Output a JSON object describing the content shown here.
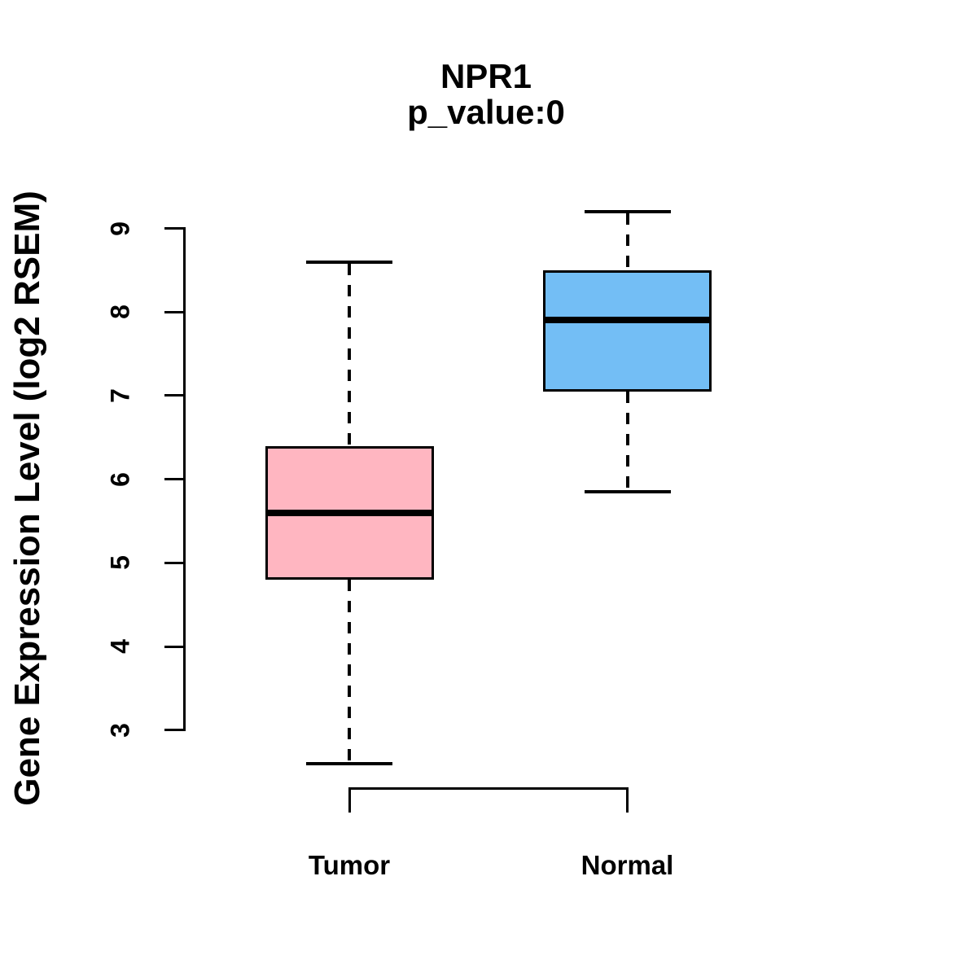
{
  "chart_data": {
    "type": "boxplot",
    "title": "NPR1",
    "subtitle": "p_value:0",
    "ylabel": "Gene Expression Level (log2 RSEM)",
    "xlabel": "",
    "ylim": [
      3,
      9
    ],
    "yticks": [
      3,
      4,
      5,
      6,
      7,
      8,
      9
    ],
    "grid": false,
    "legend": "none",
    "categories": [
      "Tumor",
      "Normal"
    ],
    "groups": [
      {
        "label": "Tumor",
        "color": "#FFB6C1",
        "whisker_low": 2.6,
        "q1": 4.8,
        "median": 5.6,
        "q3": 6.4,
        "whisker_high": 8.6
      },
      {
        "label": "Normal",
        "color": "#73BEF5",
        "whisker_low": 5.85,
        "q1": 7.05,
        "median": 7.9,
        "q3": 8.5,
        "whisker_high": 9.2
      }
    ],
    "annotations": {
      "comparison_bracket": "connects Tumor and Normal below plot"
    },
    "colors": {
      "stroke": "#000000",
      "background": "#FFFFFF"
    }
  }
}
